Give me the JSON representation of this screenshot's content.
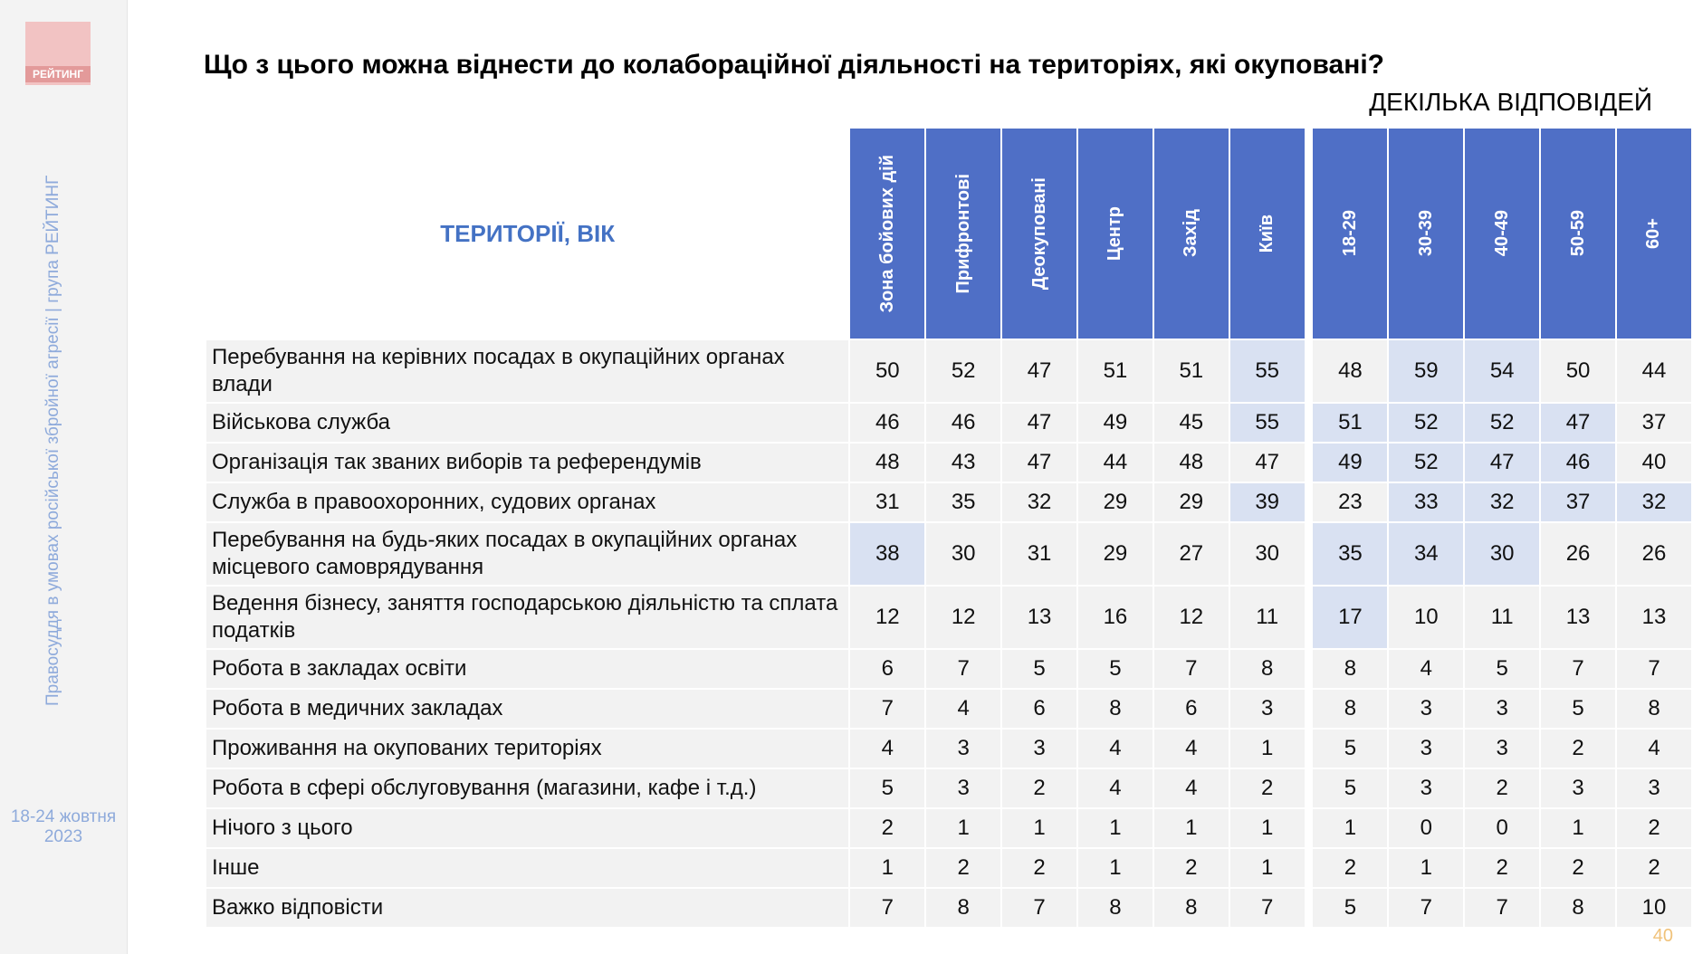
{
  "sidebar": {
    "logo": "РЕЙТИНГ",
    "caption": "Правосуддя в умовах російської збройної агресії | група РЕЙТИНГ",
    "date": "18-24 жовтня 2023"
  },
  "header": {
    "title": "Що з цього можна віднести до колабораційної діяльності на територіях, які окуповані?",
    "subtitle": "ДЕКІЛЬКА ВІДПОВІДЕЙ"
  },
  "table": {
    "corner": "ТЕРИТОРІЇ, ВІК",
    "column_groups": [
      [
        "Зона бойових дій",
        "Прифронтові",
        "Деокуповані",
        "Центр",
        "Захід",
        "Київ"
      ],
      [
        "18-29",
        "30-39",
        "40-49",
        "50-59",
        "60+"
      ]
    ],
    "highlight_color": "#d9e1f2",
    "rows": [
      {
        "label": "Перебування на керівних посадах в окупаційних органах влади",
        "values": [
          [
            50,
            52,
            47,
            51,
            51,
            55
          ],
          [
            48,
            59,
            54,
            50,
            44
          ]
        ],
        "highlight": [
          [
            false,
            false,
            false,
            false,
            false,
            true
          ],
          [
            false,
            true,
            true,
            false,
            false
          ]
        ]
      },
      {
        "label": "Військова служба",
        "values": [
          [
            46,
            46,
            47,
            49,
            45,
            55
          ],
          [
            51,
            52,
            52,
            47,
            37
          ]
        ],
        "highlight": [
          [
            false,
            false,
            false,
            false,
            false,
            true
          ],
          [
            true,
            true,
            true,
            true,
            false
          ]
        ]
      },
      {
        "label": "Організація так званих виборів та референдумів",
        "values": [
          [
            48,
            43,
            47,
            44,
            48,
            47
          ],
          [
            49,
            52,
            47,
            46,
            40
          ]
        ],
        "highlight": [
          [
            false,
            false,
            false,
            false,
            false,
            false
          ],
          [
            true,
            true,
            true,
            true,
            false
          ]
        ]
      },
      {
        "label": "Служба в правоохоронних, судових органах",
        "values": [
          [
            31,
            35,
            32,
            29,
            29,
            39
          ],
          [
            23,
            33,
            32,
            37,
            32
          ]
        ],
        "highlight": [
          [
            false,
            false,
            false,
            false,
            false,
            true
          ],
          [
            false,
            true,
            true,
            true,
            true
          ]
        ]
      },
      {
        "label": "Перебування на будь-яких посадах в окупаційних органах місцевого самоврядування",
        "values": [
          [
            38,
            30,
            31,
            29,
            27,
            30
          ],
          [
            35,
            34,
            30,
            26,
            26
          ]
        ],
        "highlight": [
          [
            true,
            false,
            false,
            false,
            false,
            false
          ],
          [
            true,
            true,
            true,
            false,
            false
          ]
        ]
      },
      {
        "label": "Ведення бізнесу, заняття господарською діяльністю та сплата податків",
        "values": [
          [
            12,
            12,
            13,
            16,
            12,
            11
          ],
          [
            17,
            10,
            11,
            13,
            13
          ]
        ],
        "highlight": [
          [
            false,
            false,
            false,
            false,
            false,
            false
          ],
          [
            true,
            false,
            false,
            false,
            false
          ]
        ]
      },
      {
        "label": "Робота в закладах освіти",
        "values": [
          [
            6,
            7,
            5,
            5,
            7,
            8
          ],
          [
            8,
            4,
            5,
            7,
            7
          ]
        ]
      },
      {
        "label": "Робота в медичних закладах",
        "values": [
          [
            7,
            4,
            6,
            8,
            6,
            3
          ],
          [
            8,
            3,
            3,
            5,
            8
          ]
        ]
      },
      {
        "label": "Проживання на окупованих територіях",
        "values": [
          [
            4,
            3,
            3,
            4,
            4,
            1
          ],
          [
            5,
            3,
            3,
            2,
            4
          ]
        ]
      },
      {
        "label": "Робота в сфері обслуговування (магазини, кафе і т.д.)",
        "values": [
          [
            5,
            3,
            2,
            4,
            4,
            2
          ],
          [
            5,
            3,
            2,
            3,
            3
          ]
        ]
      },
      {
        "label": "Нічого з цього",
        "values": [
          [
            2,
            1,
            1,
            1,
            1,
            1
          ],
          [
            1,
            0,
            0,
            1,
            2
          ]
        ]
      },
      {
        "label": "Інше",
        "values": [
          [
            1,
            2,
            2,
            1,
            2,
            1
          ],
          [
            2,
            1,
            2,
            2,
            2
          ]
        ]
      },
      {
        "label": "Важко відповісти",
        "values": [
          [
            7,
            8,
            7,
            8,
            8,
            7
          ],
          [
            5,
            7,
            7,
            8,
            10
          ]
        ]
      }
    ]
  },
  "footer": {
    "page": "40"
  }
}
